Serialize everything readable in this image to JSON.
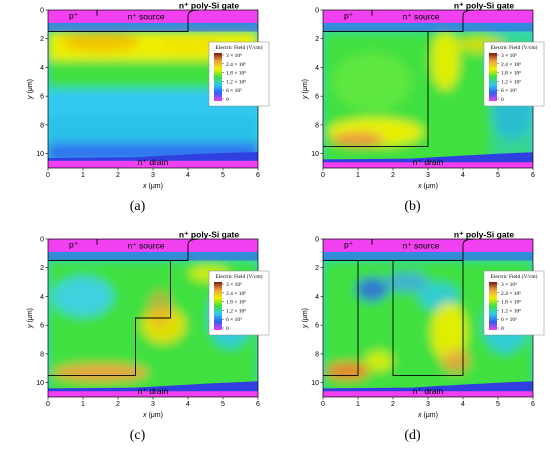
{
  "figure": {
    "panels": [
      {
        "id": "a",
        "caption": "(a)",
        "legend_title": "Electric Field (V/cm)",
        "legend_entries": [
          "3 × 10⁶",
          "2.4 × 10⁶",
          "1.8 × 10⁶",
          "1.2 × 10⁶",
          "6 × 10⁵",
          "0"
        ],
        "trench": null
      },
      {
        "id": "b",
        "caption": "(b)",
        "legend_title": "Electric Field (V/cm)",
        "legend_entries": [
          "3 × 10⁶",
          "2.4 × 10⁶",
          "1.8 × 10⁶",
          "1.2 × 10⁶",
          "6 × 10⁵",
          "0"
        ],
        "trench": "single"
      },
      {
        "id": "c",
        "caption": "(c)",
        "legend_title": "Electric Field (V/cm)",
        "legend_entries": [
          "3 × 10⁶",
          "2.4 × 10⁶",
          "1.8 × 10⁶",
          "1.2 × 10⁶",
          "6 × 10⁵",
          "0"
        ],
        "trench": "step"
      },
      {
        "id": "d",
        "caption": "(d)",
        "legend_title": "Electric Field (V/cm)",
        "legend_entries": [
          "3 × 10⁶",
          "2.4 × 10⁶",
          "1.8 × 10⁶",
          "1.2 × 10⁶",
          "6 × 10⁵",
          "0"
        ],
        "trench": "double"
      }
    ],
    "labels": {
      "gate": "n⁺ poly-Si gate",
      "source": "n⁺ source",
      "pbody": "p⁺",
      "drain": "n⁺ drain",
      "xlabel_var": "x",
      "xlabel_unit": " (μm)",
      "ylabel_var": "y",
      "ylabel_unit": " (μm)"
    },
    "x_ticks": [
      "0",
      "1",
      "2",
      "3",
      "4",
      "5",
      "6"
    ],
    "y_ticks": [
      "0",
      "2",
      "4",
      "6",
      "8",
      "10"
    ],
    "legend_colors": [
      "#7a1a10",
      "#f0a040",
      "#f0f000",
      "#40e040",
      "#30c8f0",
      "#3060f0",
      "#f040f0"
    ]
  }
}
